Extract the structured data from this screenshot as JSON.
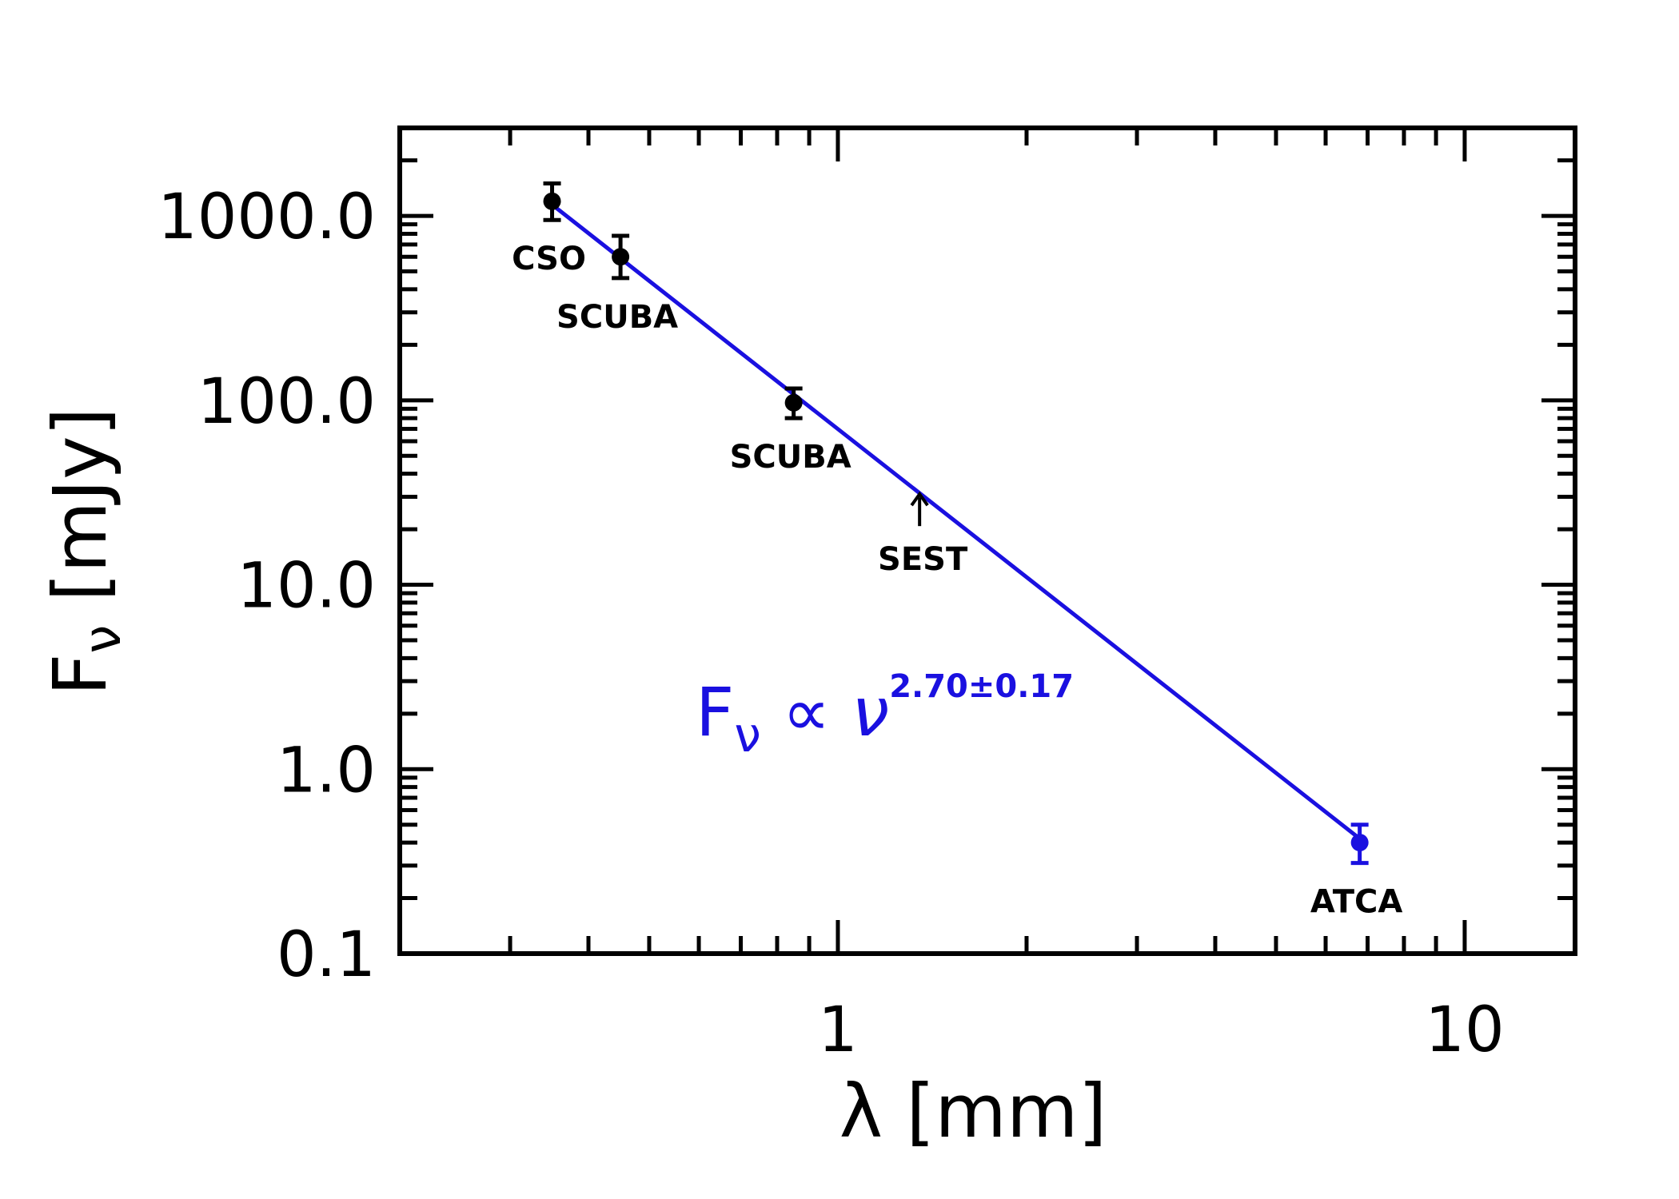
{
  "chart_data": {
    "type": "scatter",
    "title": "",
    "xlabel": "λ [mm]",
    "ylabel_main": "F",
    "ylabel_sub": "ν",
    "ylabel_unit": "[mJy]",
    "x_scale": "log",
    "y_scale": "log",
    "xlim": [
      0.2,
      15
    ],
    "ylim": [
      0.1,
      3000
    ],
    "x_ticks": [
      {
        "value": 1,
        "label": "1"
      },
      {
        "value": 10,
        "label": "10"
      }
    ],
    "y_ticks": [
      {
        "value": 0.1,
        "label": "0.1"
      },
      {
        "value": 1,
        "label": "1.0"
      },
      {
        "value": 10,
        "label": "10.0"
      },
      {
        "value": 100,
        "label": "100.0"
      },
      {
        "value": 1000,
        "label": "1000.0"
      }
    ],
    "grid": false,
    "points": [
      {
        "label": "CSO",
        "x": 0.35,
        "y": 1200,
        "y_low": 950,
        "y_high": 1500,
        "color": "#000000"
      },
      {
        "label": "SCUBA",
        "x": 0.45,
        "y": 600,
        "y_low": 460,
        "y_high": 780,
        "color": "#000000"
      },
      {
        "label": "SCUBA",
        "x": 0.85,
        "y": 97,
        "y_low": 80,
        "y_high": 116,
        "color": "#000000"
      },
      {
        "label": "ATCA",
        "x": 6.8,
        "y": 0.4,
        "y_low": 0.31,
        "y_high": 0.5,
        "color": "#1a10e0"
      }
    ],
    "upper_limit": {
      "label": "SEST",
      "x": 1.35,
      "y": 31
    },
    "fit_line": {
      "x": [
        0.35,
        6.8
      ],
      "y": [
        1150,
        0.42
      ],
      "color": "#1a10e0"
    },
    "annotation": {
      "var": "F",
      "sub": "ν",
      "prop": "∝",
      "base": "ν",
      "exponent": "2.70±0.17",
      "color": "#1a10e0"
    }
  }
}
